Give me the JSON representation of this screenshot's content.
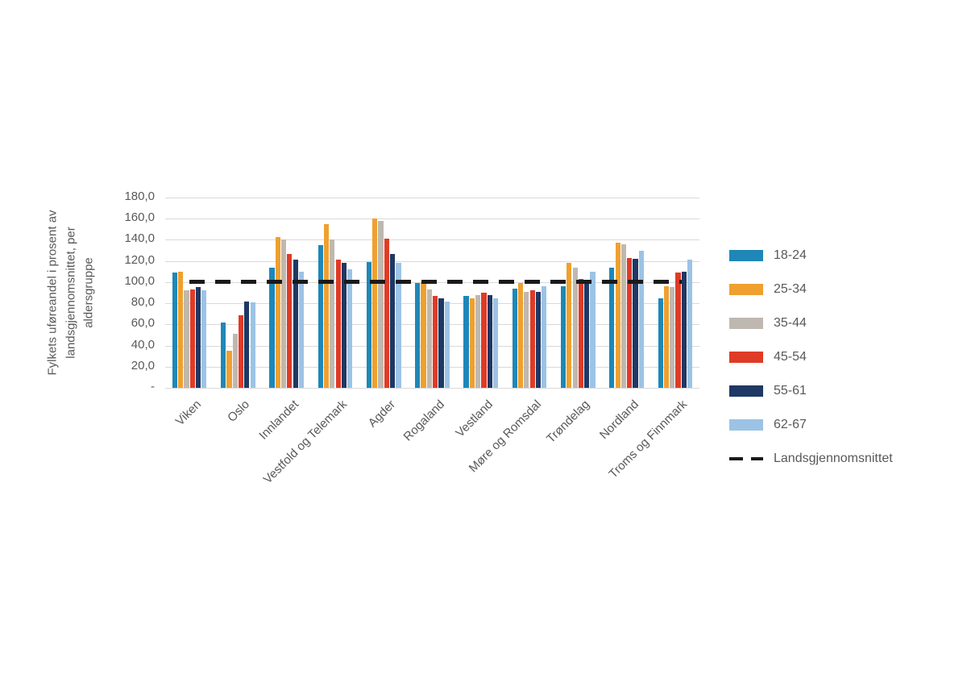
{
  "chart_data": {
    "type": "bar",
    "title": "",
    "ylabel": "Fylkets uføreandel i prosent av landsgjennomsnittet, per aldersgruppe",
    "xlabel": "",
    "ylim": [
      0,
      180
    ],
    "grid": true,
    "legend_position": "right",
    "yticks": [
      {
        "value": 0,
        "label": "-"
      },
      {
        "value": 20,
        "label": "20,0"
      },
      {
        "value": 40,
        "label": "40,0"
      },
      {
        "value": 60,
        "label": "60,0"
      },
      {
        "value": 80,
        "label": "80,0"
      },
      {
        "value": 100,
        "label": "100,0"
      },
      {
        "value": 120,
        "label": "120,0"
      },
      {
        "value": 140,
        "label": "140,0"
      },
      {
        "value": 160,
        "label": "160,0"
      },
      {
        "value": 180,
        "label": "180,0"
      }
    ],
    "categories": [
      "Viken",
      "Oslo",
      "Innlandet",
      "Vestfold og Telemark",
      "Agder",
      "Rogaland",
      "Vestland",
      "Møre og Romsdal",
      "Trøndelag",
      "Nordland",
      "Troms og Finnmark"
    ],
    "series": [
      {
        "name": "18-24",
        "color": "#1E87B8",
        "values": [
          109,
          62,
          114,
          135,
          119,
          99,
          87,
          94,
          96,
          114,
          85
        ]
      },
      {
        "name": "25-34",
        "color": "#EFA02F",
        "values": [
          110,
          35,
          143,
          155,
          160,
          100,
          85,
          99,
          118,
          137,
          96
        ]
      },
      {
        "name": "35-44",
        "color": "#BFB8B0",
        "values": [
          92,
          51,
          140,
          140,
          158,
          93,
          88,
          91,
          114,
          136,
          95
        ]
      },
      {
        "name": "45-54",
        "color": "#DF3B26",
        "values": [
          93,
          69,
          127,
          121,
          141,
          87,
          90,
          92,
          103,
          123,
          109
        ]
      },
      {
        "name": "55-61",
        "color": "#1F3864",
        "values": [
          95,
          82,
          121,
          118,
          127,
          85,
          88,
          91,
          102,
          122,
          110
        ]
      },
      {
        "name": "62-67",
        "color": "#9CC3E5",
        "values": [
          92,
          81,
          110,
          112,
          118,
          82,
          85,
          96,
          110,
          130,
          121
        ]
      }
    ],
    "reference_line": {
      "label": "Landsgjennomsnittet",
      "value": 100,
      "color": "#1A1A1A"
    }
  }
}
